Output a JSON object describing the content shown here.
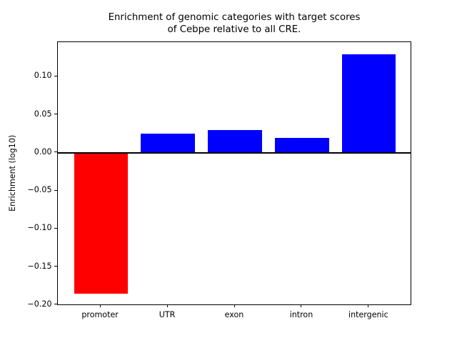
{
  "figure": {
    "title_lines": [
      "Enrichment of genomic categories with target scores",
      "of Cebpe relative to all CRE."
    ]
  },
  "chart_data": {
    "type": "bar",
    "title": "Enrichment of genomic categories with target scores\nof Cebpe relative to all CRE.",
    "categories": [
      "promoter",
      "UTR",
      "exon",
      "intron",
      "intergenic"
    ],
    "values": [
      -0.185,
      0.025,
      0.03,
      0.02,
      0.13
    ],
    "bar_colors": [
      "#ff0000",
      "#0000ff",
      "#0000ff",
      "#0000ff",
      "#0000ff"
    ],
    "negative_color": "#ff0000",
    "positive_color": "#0000ff",
    "xlabel": "",
    "ylabel": "Enrichment (log10)",
    "yticks": [
      -0.2,
      -0.15,
      -0.1,
      -0.05,
      0.0,
      0.05,
      0.1
    ],
    "ylim": [
      -0.201,
      0.146
    ],
    "xlim": [
      -0.64,
      4.64
    ],
    "bar_width": 0.8,
    "grid": false,
    "legend": null,
    "zero_line": true,
    "axis_color": "#000000",
    "background_color": "#ffffff"
  }
}
